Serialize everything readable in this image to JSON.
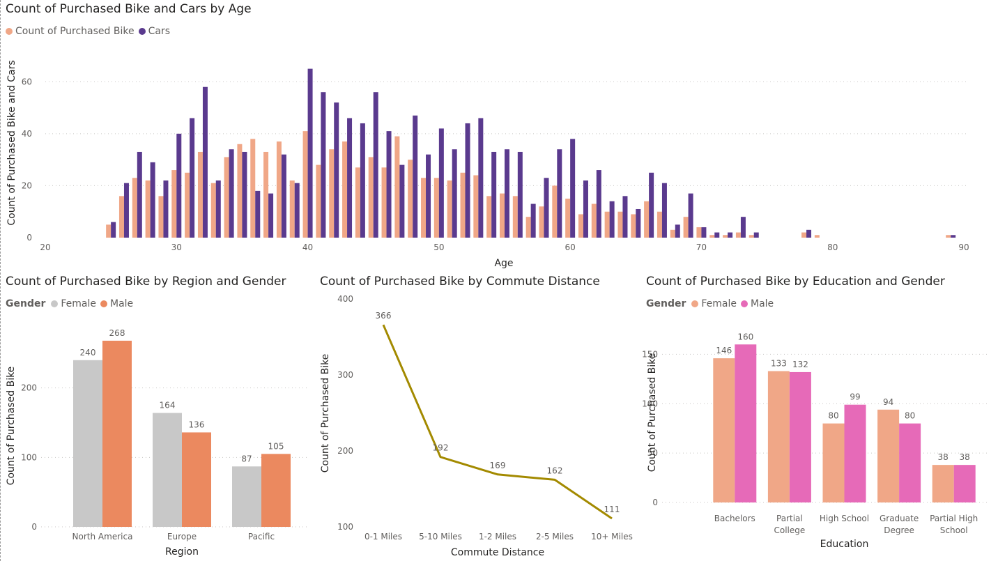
{
  "chart_data": [
    {
      "type": "bar",
      "title": "Count of Purchased Bike and Cars by Age",
      "xlabel": "Age",
      "ylabel": "Count of Purchased Bike and Cars",
      "xlim": [
        20,
        90
      ],
      "ylim": [
        0,
        70
      ],
      "x_ticks": [
        20,
        30,
        40,
        50,
        60,
        70,
        80,
        90
      ],
      "y_ticks": [
        0,
        20,
        40,
        60
      ],
      "legend_position": "top-left",
      "grid": true,
      "x": [
        25,
        26,
        27,
        28,
        29,
        30,
        31,
        32,
        33,
        34,
        35,
        36,
        37,
        38,
        39,
        40,
        41,
        42,
        43,
        44,
        45,
        46,
        47,
        48,
        49,
        50,
        51,
        52,
        53,
        54,
        55,
        56,
        57,
        58,
        59,
        60,
        61,
        62,
        63,
        64,
        65,
        66,
        67,
        68,
        69,
        70,
        71,
        72,
        73,
        74,
        78,
        79,
        89
      ],
      "series": [
        {
          "name": "Count of Purchased Bike",
          "color": "#F0A787",
          "values": [
            5,
            16,
            23,
            22,
            16,
            26,
            25,
            33,
            21,
            31,
            36,
            38,
            33,
            37,
            22,
            41,
            28,
            34,
            37,
            27,
            31,
            27,
            39,
            30,
            23,
            23,
            22,
            25,
            24,
            16,
            17,
            16,
            8,
            12,
            20,
            15,
            9,
            13,
            10,
            10,
            9,
            14,
            10,
            3,
            8,
            4,
            1,
            1,
            2,
            1,
            2,
            1,
            1
          ]
        },
        {
          "name": "Cars",
          "color": "#5A3A8E",
          "values": [
            6,
            21,
            33,
            29,
            22,
            40,
            46,
            58,
            22,
            34,
            33,
            18,
            17,
            32,
            21,
            65,
            56,
            52,
            46,
            44,
            56,
            41,
            28,
            47,
            32,
            42,
            34,
            44,
            46,
            33,
            34,
            33,
            13,
            23,
            34,
            38,
            22,
            26,
            14,
            16,
            11,
            25,
            21,
            5,
            17,
            4,
            2,
            2,
            8,
            2,
            3,
            0,
            1
          ]
        }
      ]
    },
    {
      "type": "bar",
      "title": "Count of Purchased Bike by Region and Gender",
      "legend_title": "Gender",
      "xlabel": "Region",
      "ylabel": "Count of Purchased Bike",
      "ylim": [
        0,
        300
      ],
      "y_ticks": [
        0,
        100,
        200
      ],
      "legend_position": "top-left",
      "grid": true,
      "categories": [
        "North America",
        "Europe",
        "Pacific"
      ],
      "series": [
        {
          "name": "Female",
          "color": "#C8C8C8",
          "values": [
            240,
            164,
            87
          ]
        },
        {
          "name": "Male",
          "color": "#EB895F",
          "values": [
            268,
            136,
            105
          ]
        }
      ]
    },
    {
      "type": "line",
      "title": "Count of Purchased Bike by Commute Distance",
      "xlabel": "Commute Distance",
      "ylabel": "Count of Purchased Bike",
      "ylim": [
        100,
        400
      ],
      "y_ticks": [
        100,
        200,
        300,
        400
      ],
      "grid": false,
      "categories": [
        "0-1 Miles",
        "5-10 Miles",
        "1-2 Miles",
        "2-5 Miles",
        "10+ Miles"
      ],
      "series": [
        {
          "name": "",
          "color": "#A38A00",
          "values": [
            366,
            192,
            169,
            162,
            111
          ]
        }
      ]
    },
    {
      "type": "bar",
      "title": "Count of Purchased Bike by Education and Gender",
      "legend_title": "Gender",
      "xlabel": "Education",
      "ylabel": "Count of Purchased Bike",
      "ylim": [
        0,
        175
      ],
      "y_ticks": [
        0,
        50,
        100,
        150
      ],
      "legend_position": "top-left",
      "grid": true,
      "categories": [
        "Bachelors",
        "Partial College",
        "High School",
        "Graduate Degree",
        "Partial High School"
      ],
      "category_lines": [
        [
          "Bachelors"
        ],
        [
          "Partial",
          "College"
        ],
        [
          "High School"
        ],
        [
          "Graduate",
          "Degree"
        ],
        [
          "Partial High",
          "School"
        ]
      ],
      "series": [
        {
          "name": "Female",
          "color": "#F0A787",
          "values": [
            146,
            133,
            80,
            94,
            38
          ]
        },
        {
          "name": "Male",
          "color": "#E66AB8",
          "values": [
            160,
            132,
            99,
            80,
            38
          ]
        }
      ]
    }
  ]
}
